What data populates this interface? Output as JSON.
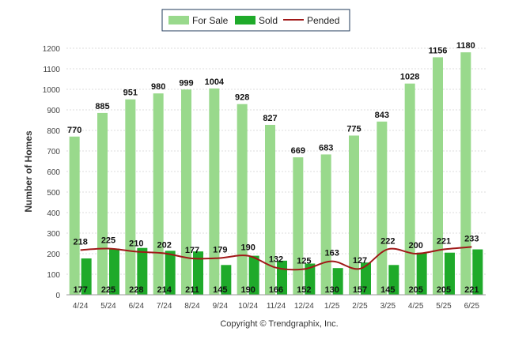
{
  "chart_data": {
    "type": "bar",
    "title": "",
    "xlabel": "",
    "ylabel": "Number of Homes",
    "ylim": [
      0,
      1200
    ],
    "yticks": [
      0,
      100,
      200,
      300,
      400,
      500,
      600,
      700,
      800,
      900,
      1000,
      1100,
      1200
    ],
    "grid": true,
    "legend_position": "top-center",
    "categories": [
      "4/24",
      "5/24",
      "6/24",
      "7/24",
      "8/24",
      "9/24",
      "10/24",
      "11/24",
      "12/24",
      "1/25",
      "2/25",
      "3/25",
      "4/25",
      "5/25",
      "6/25"
    ],
    "series": [
      {
        "name": "For Sale",
        "kind": "bar",
        "color": "#99d98c",
        "values": [
          770,
          885,
          951,
          980,
          999,
          1004,
          928,
          827,
          669,
          683,
          775,
          843,
          1028,
          1156,
          1180
        ]
      },
      {
        "name": "Sold",
        "kind": "bar",
        "color": "#1faa2a",
        "values": [
          177,
          225,
          228,
          214,
          211,
          145,
          190,
          166,
          152,
          130,
          157,
          145,
          205,
          205,
          221
        ]
      },
      {
        "name": "Pended",
        "kind": "line",
        "color": "#a01818",
        "values": [
          218,
          225,
          210,
          202,
          177,
          179,
          190,
          132,
          125,
          163,
          127,
          222,
          200,
          221,
          233
        ]
      }
    ],
    "footer": "Copyright © Trendgraphix, Inc."
  }
}
